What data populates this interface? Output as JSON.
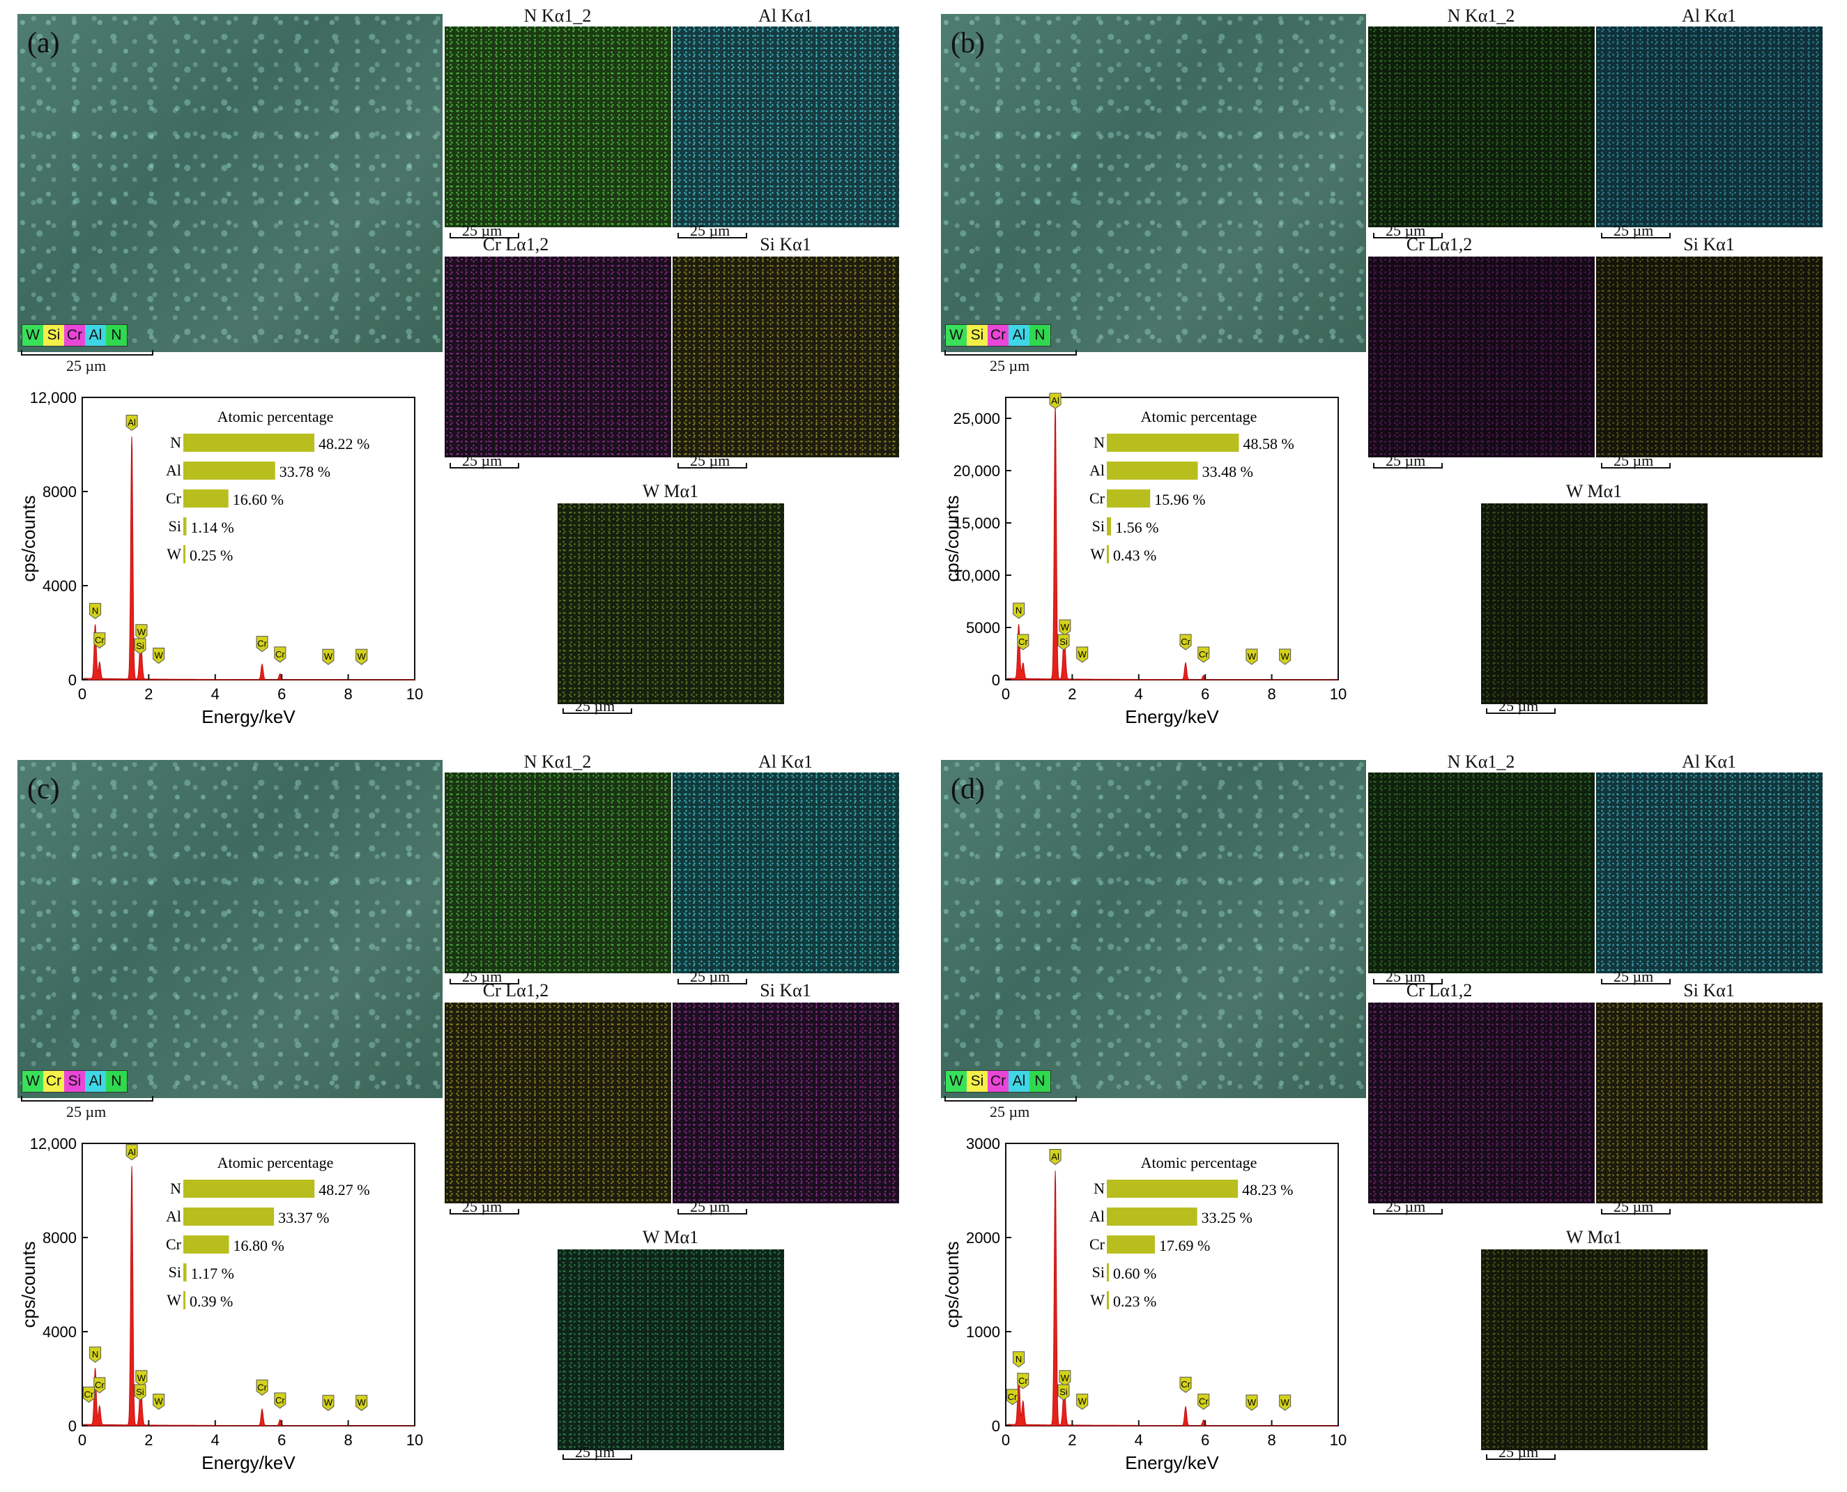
{
  "panels": [
    {
      "tag": "(a)",
      "legend": [
        "W",
        "Si",
        "Cr",
        "Al",
        "N"
      ],
      "legend_colors": [
        "#39e05a",
        "#f3f04a",
        "#e946d8",
        "#3fd6e6",
        "#2fd84f"
      ],
      "sem_scale": "25 µm",
      "maps": [
        {
          "title": "N Kα1_2",
          "scale": "25 µm",
          "color": "#1c3a14",
          "dot": "#4ab83a"
        },
        {
          "title": "Al Kα1",
          "scale": "25 µm",
          "color": "#163b40",
          "dot": "#3fb8c4"
        },
        {
          "title": "Cr Lα1,2",
          "scale": "25 µm",
          "color": "#1a0f1c",
          "dot": "#8a2a8a"
        },
        {
          "title": "Si Kα1",
          "scale": "25 µm",
          "color": "#1e1c0e",
          "dot": "#8a8220"
        },
        {
          "title": "W Mα1",
          "scale": "25 µm",
          "color": "#16200e",
          "dot": "#5a7a20"
        }
      ],
      "chart_data": {
        "type": "line",
        "xlabel": "Energy/keV",
        "ylabel": "cps/counts",
        "xlim": [
          0,
          10
        ],
        "ylim": [
          0,
          12000
        ],
        "xticks": [
          "0",
          "2",
          "4",
          "6",
          "8",
          "10"
        ],
        "yticks": [
          "0",
          "4000",
          "8000",
          "12,000"
        ],
        "peaks": [
          {
            "x": 0.39,
            "y": 2300
          },
          {
            "x": 0.52,
            "y": 700
          },
          {
            "x": 1.49,
            "y": 10300
          },
          {
            "x": 1.74,
            "y": 1000
          },
          {
            "x": 1.78,
            "y": 900
          },
          {
            "x": 5.41,
            "y": 650
          },
          {
            "x": 5.95,
            "y": 250
          }
        ],
        "markers": [
          {
            "label": "N",
            "x": 0.39,
            "y": 2300
          },
          {
            "label": "Cr",
            "x": 0.52,
            "y": 1050
          },
          {
            "label": "Al",
            "x": 1.49,
            "y": 10300
          },
          {
            "label": "W",
            "x": 1.78,
            "y": 1400
          },
          {
            "label": "Si",
            "x": 1.74,
            "y": 800
          },
          {
            "label": "W",
            "x": 2.3,
            "y": 400
          },
          {
            "label": "Cr",
            "x": 5.41,
            "y": 900
          },
          {
            "label": "Cr",
            "x": 5.95,
            "y": 450
          },
          {
            "label": "W",
            "x": 7.4,
            "y": 350
          },
          {
            "label": "W",
            "x": 8.4,
            "y": 350
          }
        ],
        "atomic_title": "Atomic  percentage",
        "atomic": [
          {
            "el": "N",
            "val": 48.22,
            "label": "48.22 %"
          },
          {
            "el": "Al",
            "val": 33.78,
            "label": "33.78 %"
          },
          {
            "el": "Cr",
            "val": 16.6,
            "label": "16.60 %"
          },
          {
            "el": "Si",
            "val": 1.14,
            "label": "1.14 %"
          },
          {
            "el": "W",
            "val": 0.25,
            "label": "0.25 %"
          }
        ]
      }
    },
    {
      "tag": "(b)",
      "legend": [
        "W",
        "Si",
        "Cr",
        "Al",
        "N"
      ],
      "legend_colors": [
        "#39e05a",
        "#f3f04a",
        "#e946d8",
        "#3fd6e6",
        "#2fd84f"
      ],
      "sem_scale": "25 µm",
      "maps": [
        {
          "title": "N Kα1_2",
          "scale": "25 µm",
          "color": "#0f1e0c",
          "dot": "#2e6e22"
        },
        {
          "title": "Al Kα1",
          "scale": "25 µm",
          "color": "#10303a",
          "dot": "#2f8a96"
        },
        {
          "title": "Cr Lα1,2",
          "scale": "25 µm",
          "color": "#140a16",
          "dot": "#5a1a5a"
        },
        {
          "title": "Si Kα1",
          "scale": "25 µm",
          "color": "#14140a",
          "dot": "#5a5a18"
        },
        {
          "title": "W Mα1",
          "scale": "25 µm",
          "color": "#10160a",
          "dot": "#3a5018"
        }
      ],
      "chart_data": {
        "type": "line",
        "xlabel": "Energy/keV",
        "ylabel": "cps/counts",
        "xlim": [
          0,
          10
        ],
        "ylim": [
          0,
          27000
        ],
        "xticks": [
          "0",
          "2",
          "4",
          "6",
          "8",
          "10"
        ],
        "yticks": [
          "0",
          "5000",
          "10,000",
          "15,000",
          "20,000",
          "25,000"
        ],
        "peaks": [
          {
            "x": 0.39,
            "y": 5200
          },
          {
            "x": 0.52,
            "y": 1500
          },
          {
            "x": 1.49,
            "y": 26200
          },
          {
            "x": 1.74,
            "y": 2600
          },
          {
            "x": 1.78,
            "y": 2200
          },
          {
            "x": 5.41,
            "y": 1600
          },
          {
            "x": 5.95,
            "y": 400
          }
        ],
        "markers": [
          {
            "label": "N",
            "x": 0.39,
            "y": 5200
          },
          {
            "label": "Cr",
            "x": 0.52,
            "y": 2200
          },
          {
            "label": "Al",
            "x": 1.49,
            "y": 26200
          },
          {
            "label": "W",
            "x": 1.78,
            "y": 3600
          },
          {
            "label": "Si",
            "x": 1.74,
            "y": 2200
          },
          {
            "label": "W",
            "x": 2.3,
            "y": 1000
          },
          {
            "label": "Cr",
            "x": 5.41,
            "y": 2200
          },
          {
            "label": "Cr",
            "x": 5.95,
            "y": 1000
          },
          {
            "label": "W",
            "x": 7.4,
            "y": 800
          },
          {
            "label": "W",
            "x": 8.4,
            "y": 800
          }
        ],
        "atomic_title": "Atomic  percentage",
        "atomic": [
          {
            "el": "N",
            "val": 48.58,
            "label": "48.58 %"
          },
          {
            "el": "Al",
            "val": 33.48,
            "label": "33.48 %"
          },
          {
            "el": "Cr",
            "val": 15.96,
            "label": "15.96 %"
          },
          {
            "el": "Si",
            "val": 1.56,
            "label": "1.56 %"
          },
          {
            "el": "W",
            "val": 0.43,
            "label": "0.43 %"
          }
        ]
      }
    },
    {
      "tag": "(c)",
      "legend": [
        "W",
        "Cr",
        "Si",
        "Al",
        "N"
      ],
      "legend_colors": [
        "#39e05a",
        "#f3f04a",
        "#e946d8",
        "#3fd6e6",
        "#2fd84f"
      ],
      "sem_scale": "25 µm",
      "maps": [
        {
          "title": "N Kα1_2",
          "scale": "25 µm",
          "color": "#1a3414",
          "dot": "#46a636"
        },
        {
          "title": "Al Kα1",
          "scale": "25 µm",
          "color": "#123a3c",
          "dot": "#3ab0b8"
        },
        {
          "title": "Cr Lα1,2",
          "scale": "25 µm",
          "color": "#1e1c0c",
          "dot": "#8a8220"
        },
        {
          "title": "Si Kα1",
          "scale": "25 µm",
          "color": "#1a0f1e",
          "dot": "#8a2a8a"
        },
        {
          "title": "W Mα1",
          "scale": "25 µm",
          "color": "#0e2418",
          "dot": "#2a7a4a"
        }
      ],
      "chart_data": {
        "type": "line",
        "xlabel": "Energy/keV",
        "ylabel": "cps/counts",
        "xlim": [
          0,
          10
        ],
        "ylim": [
          0,
          12000
        ],
        "xticks": [
          "0",
          "2",
          "4",
          "6",
          "8",
          "10"
        ],
        "yticks": [
          "0",
          "4000",
          "8000",
          "12,000"
        ],
        "peaks": [
          {
            "x": 0.39,
            "y": 2400
          },
          {
            "x": 0.52,
            "y": 800
          },
          {
            "x": 1.49,
            "y": 11000
          },
          {
            "x": 1.74,
            "y": 1000
          },
          {
            "x": 1.78,
            "y": 900
          },
          {
            "x": 5.41,
            "y": 700
          },
          {
            "x": 5.95,
            "y": 250
          }
        ],
        "markers": [
          {
            "label": "N",
            "x": 0.39,
            "y": 2400
          },
          {
            "label": "Cr",
            "x": 0.52,
            "y": 1100
          },
          {
            "label": "Cr",
            "x": 0.2,
            "y": 700
          },
          {
            "label": "Al",
            "x": 1.49,
            "y": 11000
          },
          {
            "label": "W",
            "x": 1.78,
            "y": 1400
          },
          {
            "label": "Si",
            "x": 1.74,
            "y": 800
          },
          {
            "label": "W",
            "x": 2.3,
            "y": 400
          },
          {
            "label": "Cr",
            "x": 5.41,
            "y": 1000
          },
          {
            "label": "Cr",
            "x": 5.95,
            "y": 450
          },
          {
            "label": "W",
            "x": 7.4,
            "y": 350
          },
          {
            "label": "W",
            "x": 8.4,
            "y": 350
          }
        ],
        "atomic_title": "Atomic  percentage",
        "atomic": [
          {
            "el": "N",
            "val": 48.27,
            "label": "48.27 %"
          },
          {
            "el": "Al",
            "val": 33.37,
            "label": "33.37 %"
          },
          {
            "el": "Cr",
            "val": 16.8,
            "label": "16.80 %"
          },
          {
            "el": "Si",
            "val": 1.17,
            "label": "1.17 %"
          },
          {
            "el": "W",
            "val": 0.39,
            "label": "0.39 %"
          }
        ]
      }
    },
    {
      "tag": "(d)",
      "legend": [
        "W",
        "Si",
        "Cr",
        "Al",
        "N"
      ],
      "legend_colors": [
        "#39e05a",
        "#f3f04a",
        "#e946d8",
        "#3fd6e6",
        "#2fd84f"
      ],
      "sem_scale": "25 µm",
      "maps": [
        {
          "title": "N Kα1_2",
          "scale": "25 µm",
          "color": "#10200e",
          "dot": "#2e6a22"
        },
        {
          "title": "Al Kα1",
          "scale": "25 µm",
          "color": "#12363c",
          "dot": "#38a4b0"
        },
        {
          "title": "Cr Lα1,2",
          "scale": "25 µm",
          "color": "#180c1a",
          "dot": "#6e226e"
        },
        {
          "title": "Si Kα1",
          "scale": "25 µm",
          "color": "#1c1a0c",
          "dot": "#7a7220"
        },
        {
          "title": "W Mα1",
          "scale": "25 µm",
          "color": "#14180a",
          "dot": "#4a5a18"
        }
      ],
      "chart_data": {
        "type": "line",
        "xlabel": "Energy/keV",
        "ylabel": "cps/counts",
        "xlim": [
          0,
          10
        ],
        "ylim": [
          0,
          3000
        ],
        "xticks": [
          "0",
          "2",
          "4",
          "6",
          "8",
          "10"
        ],
        "yticks": [
          "0",
          "1000",
          "2000",
          "3000"
        ],
        "peaks": [
          {
            "x": 0.39,
            "y": 550
          },
          {
            "x": 0.52,
            "y": 250
          },
          {
            "x": 1.49,
            "y": 2700
          },
          {
            "x": 1.74,
            "y": 250
          },
          {
            "x": 1.78,
            "y": 220
          },
          {
            "x": 5.41,
            "y": 200
          },
          {
            "x": 5.95,
            "y": 60
          }
        ],
        "markers": [
          {
            "label": "N",
            "x": 0.39,
            "y": 550
          },
          {
            "label": "Cr",
            "x": 0.52,
            "y": 320
          },
          {
            "label": "Cr",
            "x": 0.2,
            "y": 150
          },
          {
            "label": "Al",
            "x": 1.49,
            "y": 2700
          },
          {
            "label": "W",
            "x": 1.78,
            "y": 350
          },
          {
            "label": "Si",
            "x": 1.74,
            "y": 200
          },
          {
            "label": "W",
            "x": 2.3,
            "y": 100
          },
          {
            "label": "Cr",
            "x": 5.41,
            "y": 280
          },
          {
            "label": "Cr",
            "x": 5.95,
            "y": 100
          },
          {
            "label": "W",
            "x": 7.4,
            "y": 90
          },
          {
            "label": "W",
            "x": 8.4,
            "y": 90
          }
        ],
        "atomic_title": "Atomic  percentage",
        "atomic": [
          {
            "el": "N",
            "val": 48.23,
            "label": "48.23 %"
          },
          {
            "el": "Al",
            "val": 33.25,
            "label": "33.25 %"
          },
          {
            "el": "Cr",
            "val": 17.69,
            "label": "17.69 %"
          },
          {
            "el": "Si",
            "val": 0.6,
            "label": "0.60 %"
          },
          {
            "el": "W",
            "val": 0.23,
            "label": "0.23 %"
          }
        ]
      }
    }
  ]
}
